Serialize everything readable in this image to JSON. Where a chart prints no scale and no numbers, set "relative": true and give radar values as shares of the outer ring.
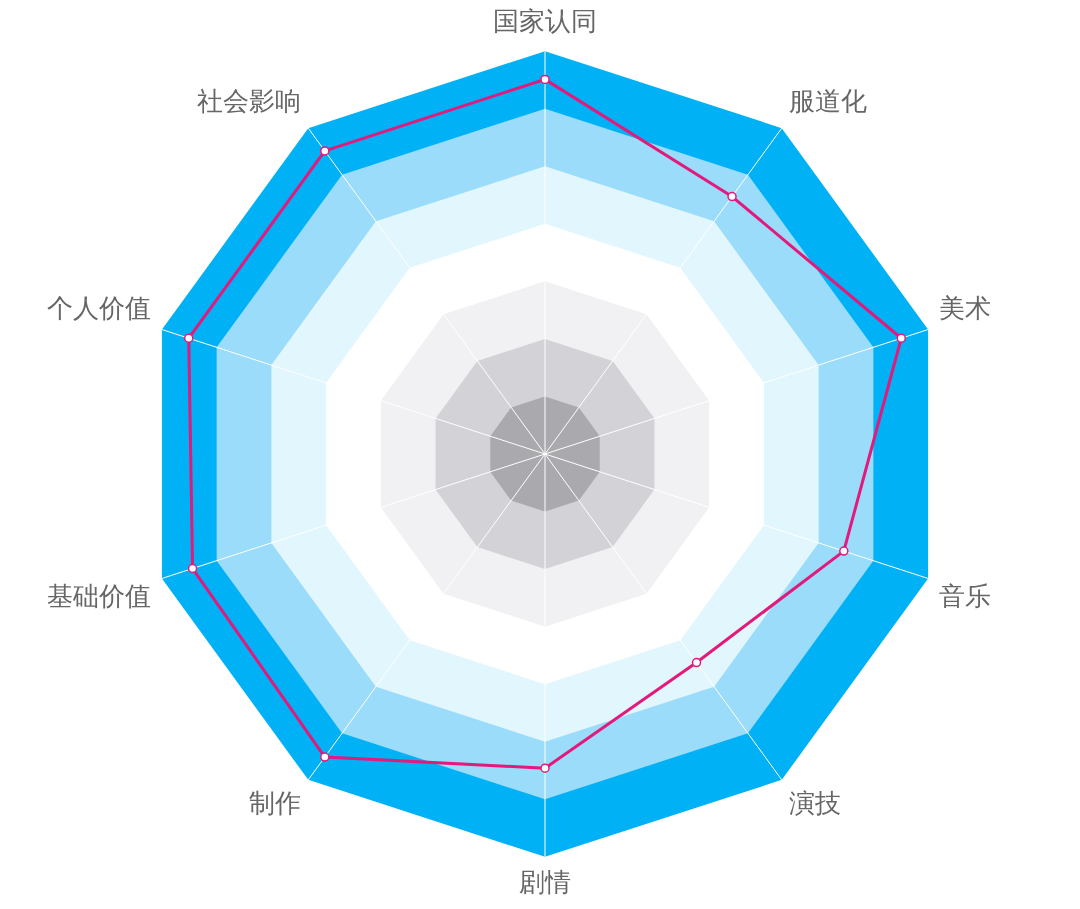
{
  "chart_data": {
    "type": "radar",
    "relative": true,
    "legend": false,
    "marker": "circle",
    "categories": [
      "国家认同",
      "服道化",
      "美术",
      "音乐",
      "演技",
      "剧情",
      "制作",
      "基础价值",
      "个人价值",
      "社会影响"
    ],
    "series": [
      {
        "color": "#e3197b",
        "values": [
          0.93,
          0.79,
          0.93,
          0.78,
          0.64,
          0.78,
          0.93,
          0.92,
          0.93,
          0.93
        ]
      }
    ]
  }
}
